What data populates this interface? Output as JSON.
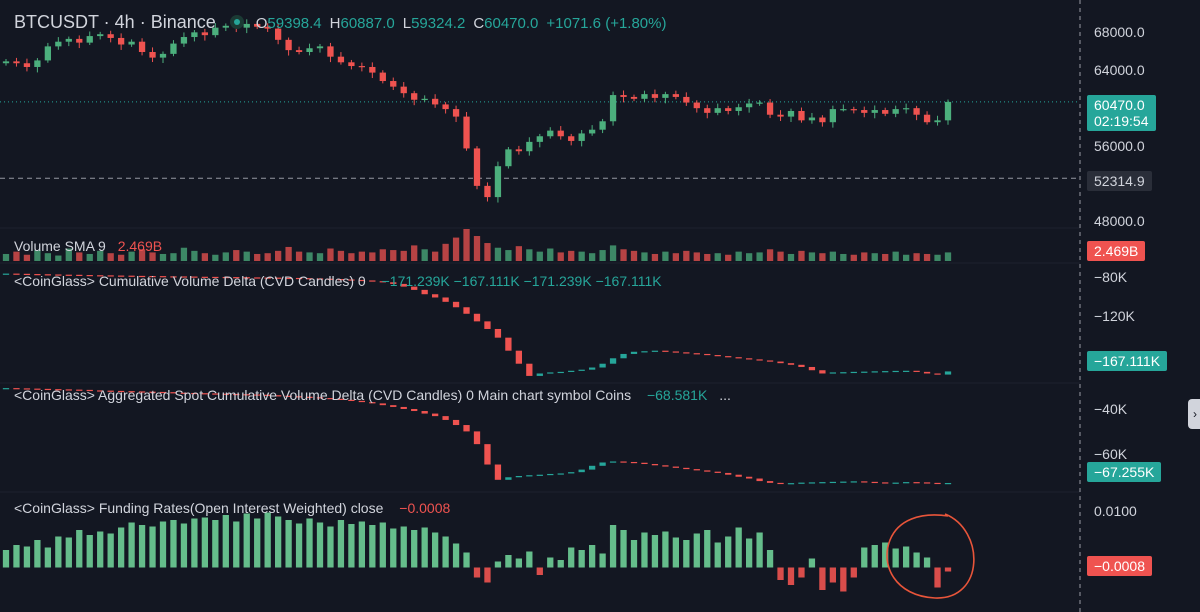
{
  "header": {
    "symbol": "BTCUSDT · 4h · Binance",
    "open_key": "O",
    "open": "59398.4",
    "high_key": "H",
    "high": "60887.0",
    "low_key": "L",
    "low": "59324.2",
    "close_key": "C",
    "close": "60470.0",
    "change": "+1071.6 (+1.80%)"
  },
  "price_axis": {
    "ticks": [
      "68000.0",
      "64000.0",
      "56000.0",
      "48000.0"
    ],
    "last_price": "60470.0",
    "countdown": "02:19:54",
    "crosshair_price": "52314.9"
  },
  "volume_pane": {
    "label": "Volume SMA 9",
    "value": "2.469B",
    "tag": "2.469B"
  },
  "cvd_pane": {
    "label": "<CoinGlass> Cumulative Volume Delta (CVD Candles) 0",
    "values": [
      "−171.239K",
      "−167.111K",
      "−171.239K",
      "−167.111K"
    ],
    "ticks": [
      "−80K",
      "−120K"
    ],
    "tag": "−167.111K"
  },
  "spot_cvd_pane": {
    "label": "<CoinGlass> Aggregated Spot Cumulative Volume Delta (CVD Candles) 0 Main chart symbol Coins",
    "value": "−68.581K",
    "more": "...",
    "ticks": [
      "−40K",
      "−60K"
    ],
    "tag": "−67.255K"
  },
  "funding_pane": {
    "label": "<CoinGlass> Funding Rates(Open Interest Weighted) close",
    "value": "−0.0008",
    "ticks": [
      "0.0100"
    ],
    "tag": "−0.0008"
  },
  "colors": {
    "background": "#131722",
    "up": "#26a69a",
    "up_bright": "#4caf7d",
    "down": "#ef5350",
    "annotation": "#e8553a",
    "grid": "#2a2e39"
  },
  "chart_data": [
    {
      "type": "candlestick",
      "title": "BTCUSDT · 4h · Binance",
      "series_note": "approximate path of closes read from price axis",
      "closes": [
        64800,
        64600,
        64200,
        64900,
        66400,
        66900,
        67200,
        66800,
        67500,
        67700,
        67300,
        66600,
        66900,
        65800,
        65200,
        65600,
        66700,
        67400,
        67900,
        67600,
        68400,
        68600,
        68400,
        68800,
        68500,
        68300,
        67100,
        66000,
        65800,
        66200,
        66400,
        65300,
        64700,
        64300,
        64200,
        63600,
        62700,
        62100,
        61400,
        60700,
        60800,
        60200,
        59700,
        58900,
        55500,
        51500,
        50300,
        53600,
        55400,
        55200,
        56200,
        56800,
        57400,
        56800,
        56300,
        57100,
        57500,
        58400,
        61200,
        61000,
        60800,
        61300,
        60900,
        61300,
        61000,
        60400,
        59800,
        59300,
        59800,
        59500,
        59900,
        60300,
        60400,
        59100,
        58900,
        59500,
        58500,
        58800,
        58300,
        59700,
        59700,
        59600,
        59300,
        59600,
        59200,
        59700,
        59800,
        59100,
        58300,
        58500,
        60470
      ],
      "ylim": [
        47000,
        70500
      ],
      "ticks": [
        48000,
        56000,
        64000,
        68000
      ],
      "last_price": 60470,
      "crosshair_price": 52314.9
    },
    {
      "type": "bar",
      "title": "Volume SMA 9",
      "last_value": "2.469B",
      "values": [
        0.9,
        1.2,
        0.8,
        1.4,
        1.0,
        0.7,
        1.6,
        1.1,
        0.9,
        1.3,
        1.0,
        0.8,
        1.2,
        1.5,
        1.1,
        0.9,
        1.0,
        1.7,
        1.3,
        1.0,
        0.8,
        1.1,
        1.4,
        1.2,
        0.9,
        1.0,
        1.3,
        1.8,
        1.2,
        1.1,
        1.0,
        1.6,
        1.3,
        1.0,
        1.2,
        1.1,
        1.5,
        1.4,
        1.3,
        2.0,
        1.5,
        1.2,
        2.2,
        3.0,
        4.1,
        3.2,
        2.3,
        1.7,
        1.4,
        1.9,
        1.5,
        1.2,
        1.6,
        1.1,
        1.3,
        1.2,
        1.0,
        1.4,
        2.0,
        1.5,
        1.3,
        1.1,
        0.9,
        1.2,
        1.0,
        1.3,
        1.1,
        0.9,
        1.0,
        0.8,
        1.2,
        1.0,
        1.1,
        1.5,
        1.2,
        0.9,
        1.3,
        1.1,
        1.0,
        1.2,
        0.9,
        0.8,
        1.1,
        1.0,
        0.9,
        1.2,
        0.8,
        1.0,
        0.9,
        0.8,
        1.1
      ]
    },
    {
      "type": "line",
      "title": "<CoinGlass> Cumulative Volume Delta (CVD Candles) 0",
      "ylim": [
        -175000,
        -70000
      ],
      "ticks": [
        -80000,
        -120000
      ],
      "values": [
        -77000,
        -77200,
        -77400,
        -77600,
        -77800,
        -78000,
        -78100,
        -78300,
        -78500,
        -78600,
        -78800,
        -78900,
        -79100,
        -79200,
        -79300,
        -79500,
        -79600,
        -79700,
        -79900,
        -80000,
        -80100,
        -80200,
        -80300,
        -80500,
        -80600,
        -80700,
        -80900,
        -81000,
        -81200,
        -81400,
        -81700,
        -82000,
        -82400,
        -82800,
        -83300,
        -84000,
        -85000,
        -86500,
        -89000,
        -92000,
        -96000,
        -99000,
        -103000,
        -108000,
        -114000,
        -121000,
        -128000,
        -136000,
        -148000,
        -160000,
        -171239,
        -169000,
        -168000,
        -167500,
        -166500,
        -165500,
        -163500,
        -160000,
        -155000,
        -151000,
        -149000,
        -148500,
        -148000,
        -148700,
        -149500,
        -150300,
        -151000,
        -152000,
        -153000,
        -154000,
        -155000,
        -156000,
        -157000,
        -158000,
        -159500,
        -161000,
        -163000,
        -166000,
        -169000,
        -168000,
        -167800,
        -167500,
        -167300,
        -167000,
        -166800,
        -166600,
        -166500,
        -167500,
        -169000,
        -170000,
        -167111
      ]
    },
    {
      "type": "line",
      "title": "<CoinGlass> Aggregated Spot Cumulative Volume Delta (CVD Candles) 0 Main chart symbol Coins",
      "ylim": [
        -70000,
        -28000
      ],
      "ticks": [
        -40000,
        -60000
      ],
      "values": [
        -30000,
        -30100,
        -30200,
        -30300,
        -30400,
        -30500,
        -30600,
        -30700,
        -30900,
        -31000,
        -31100,
        -31200,
        -31300,
        -31400,
        -31500,
        -31600,
        -31800,
        -31900,
        -32000,
        -32100,
        -32200,
        -32300,
        -32400,
        -32500,
        -32600,
        -32800,
        -33000,
        -33200,
        -33400,
        -33600,
        -33900,
        -34200,
        -34600,
        -35000,
        -35500,
        -36000,
        -36700,
        -37400,
        -38200,
        -39000,
        -40000,
        -41000,
        -42500,
        -44500,
        -47000,
        -52000,
        -60000,
        -66000,
        -65000,
        -64500,
        -64200,
        -64000,
        -63700,
        -63500,
        -63000,
        -62000,
        -60500,
        -59200,
        -58800,
        -59000,
        -59300,
        -59800,
        -60300,
        -60800,
        -61300,
        -61800,
        -62300,
        -62800,
        -63300,
        -64000,
        -64800,
        -65500,
        -66500,
        -67200,
        -67500,
        -67300,
        -67100,
        -67000,
        -66900,
        -66800,
        -66700,
        -66600,
        -66800,
        -67000,
        -67300,
        -67100,
        -66900,
        -67000,
        -67200,
        -67400,
        -67255
      ]
    },
    {
      "type": "bar",
      "title": "<CoinGlass> Funding Rates(Open Interest Weighted) close",
      "ylim": [
        -0.0065,
        0.0145
      ],
      "ticks": [
        0.01
      ],
      "last_value": -0.0008,
      "values": [
        0.0035,
        0.0045,
        0.0042,
        0.0055,
        0.004,
        0.0062,
        0.006,
        0.0075,
        0.0065,
        0.0072,
        0.0068,
        0.008,
        0.009,
        0.0085,
        0.0082,
        0.0092,
        0.0095,
        0.0088,
        0.0098,
        0.01,
        0.0095,
        0.0105,
        0.0092,
        0.0108,
        0.0098,
        0.011,
        0.0102,
        0.0095,
        0.0088,
        0.0098,
        0.009,
        0.0082,
        0.0095,
        0.0087,
        0.0092,
        0.0085,
        0.009,
        0.0078,
        0.0082,
        0.0075,
        0.008,
        0.007,
        0.0062,
        0.0048,
        0.003,
        -0.002,
        -0.003,
        0.0012,
        0.0025,
        0.0018,
        0.0032,
        -0.0015,
        0.002,
        0.0015,
        0.004,
        0.0035,
        0.0045,
        0.0028,
        0.0085,
        0.0075,
        0.0055,
        0.007,
        0.0065,
        0.0072,
        0.006,
        0.0055,
        0.0068,
        0.0075,
        0.005,
        0.0062,
        0.008,
        0.0058,
        0.007,
        0.0035,
        -0.0025,
        -0.0035,
        -0.002,
        0.0018,
        -0.0045,
        -0.003,
        -0.0048,
        -0.002,
        0.004,
        0.0045,
        0.005,
        0.0038,
        0.0042,
        0.003,
        0.002,
        -0.004,
        -0.0008
      ]
    }
  ]
}
